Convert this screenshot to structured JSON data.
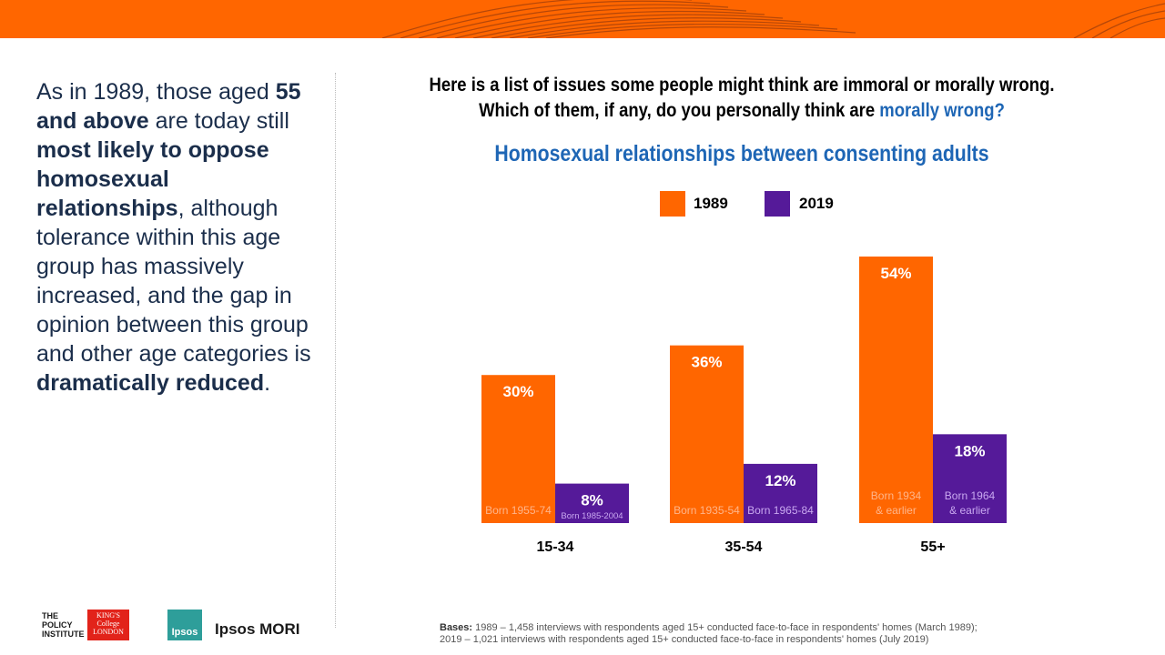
{
  "sidebar": {
    "parts": [
      {
        "text": "As in 1989, those aged ",
        "bold": false
      },
      {
        "text": "55 and above",
        "bold": true
      },
      {
        "text": " are today still ",
        "bold": false
      },
      {
        "text": "most likely to oppose homosexual relationships",
        "bold": true
      },
      {
        "text": ", although tolerance within this age group has massively increased, and the gap in opinion between this group and other age categories is ",
        "bold": false
      },
      {
        "text": "dramatically reduced",
        "bold": true
      },
      {
        "text": ".",
        "bold": false
      }
    ]
  },
  "question": {
    "text": "Here is a list of issues some people might think are immoral or morally wrong. Which of them, if any, do you personally think are ",
    "highlight": "morally wrong?"
  },
  "chart_data": {
    "type": "bar",
    "title": "Homosexual relationships between consenting adults",
    "categories": [
      "15-34",
      "35-54",
      "55+"
    ],
    "series": [
      {
        "name": "1989",
        "color": "#ff6600",
        "values": [
          30,
          36,
          54
        ],
        "labels": [
          "30%",
          "36%",
          "54%"
        ],
        "cohorts": [
          "Born 1955-74",
          "Born 1935-54",
          "Born 1934 & earlier"
        ]
      },
      {
        "name": "2019",
        "color": "#551a99",
        "values": [
          8,
          12,
          18
        ],
        "labels": [
          "8%",
          "12%",
          "18%"
        ],
        "cohorts": [
          "Born 1985-2004",
          "Born 1965-84",
          "Born 1964 & earlier"
        ]
      }
    ],
    "ylim": [
      0,
      54
    ],
    "xlabel": "",
    "ylabel": "",
    "legend_position": "top-center"
  },
  "footer": {
    "bases_label": "Bases:",
    "bases_line1": "1989 – 1,458 interviews with respondents aged 15+ conducted face-to-face in respondents' homes (March 1989);",
    "bases_line2": "2019 – 1,021 interviews with respondents aged 15+ conducted face-to-face in respondents' homes (July 2019)",
    "policy_logo": "THE POLICY INSTITUTE",
    "kings_logo": "KING'S College LONDON",
    "ipsos_logo": "Ipsos",
    "ipsos_mori": "Ipsos MORI"
  },
  "colors": {
    "accent": "#ff6600",
    "purple": "#551a99",
    "blue": "#1e66b5",
    "navy": "#1b2e4b"
  }
}
